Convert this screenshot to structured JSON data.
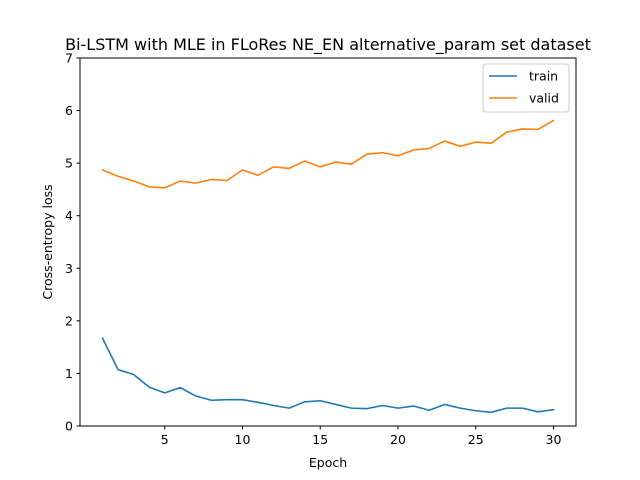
{
  "chart_data": {
    "type": "line",
    "title": "Bi-LSTM with MLE in FLoRes NE_EN alternative_param set dataset",
    "xlabel": "Epoch",
    "ylabel": "Cross-entropy loss",
    "xlim": [
      -0.45,
      31.45
    ],
    "ylim": [
      0,
      7
    ],
    "xticks": [
      5,
      10,
      15,
      20,
      25,
      30
    ],
    "yticks": [
      0,
      1,
      2,
      3,
      4,
      5,
      6,
      7
    ],
    "grid": false,
    "legend_position": "top-right",
    "x": [
      1,
      2,
      3,
      4,
      5,
      6,
      7,
      8,
      9,
      10,
      11,
      12,
      13,
      14,
      15,
      16,
      17,
      18,
      19,
      20,
      21,
      22,
      23,
      24,
      25,
      26,
      27,
      28,
      29,
      30
    ],
    "series": [
      {
        "name": "train",
        "color": "#1f77b4",
        "values": [
          1.67,
          1.07,
          0.98,
          0.74,
          0.63,
          0.73,
          0.57,
          0.49,
          0.5,
          0.5,
          0.45,
          0.39,
          0.34,
          0.46,
          0.48,
          0.41,
          0.34,
          0.33,
          0.39,
          0.34,
          0.38,
          0.3,
          0.41,
          0.34,
          0.29,
          0.26,
          0.34,
          0.34,
          0.27,
          0.31
        ]
      },
      {
        "name": "valid",
        "color": "#ff7f0e",
        "values": [
          4.87,
          4.75,
          4.66,
          4.55,
          4.53,
          4.66,
          4.62,
          4.69,
          4.67,
          4.87,
          4.77,
          4.93,
          4.9,
          5.04,
          4.93,
          5.02,
          4.98,
          5.17,
          5.2,
          5.14,
          5.25,
          5.28,
          5.42,
          5.32,
          5.4,
          5.38,
          5.59,
          5.65,
          5.64,
          5.81
        ]
      }
    ]
  }
}
